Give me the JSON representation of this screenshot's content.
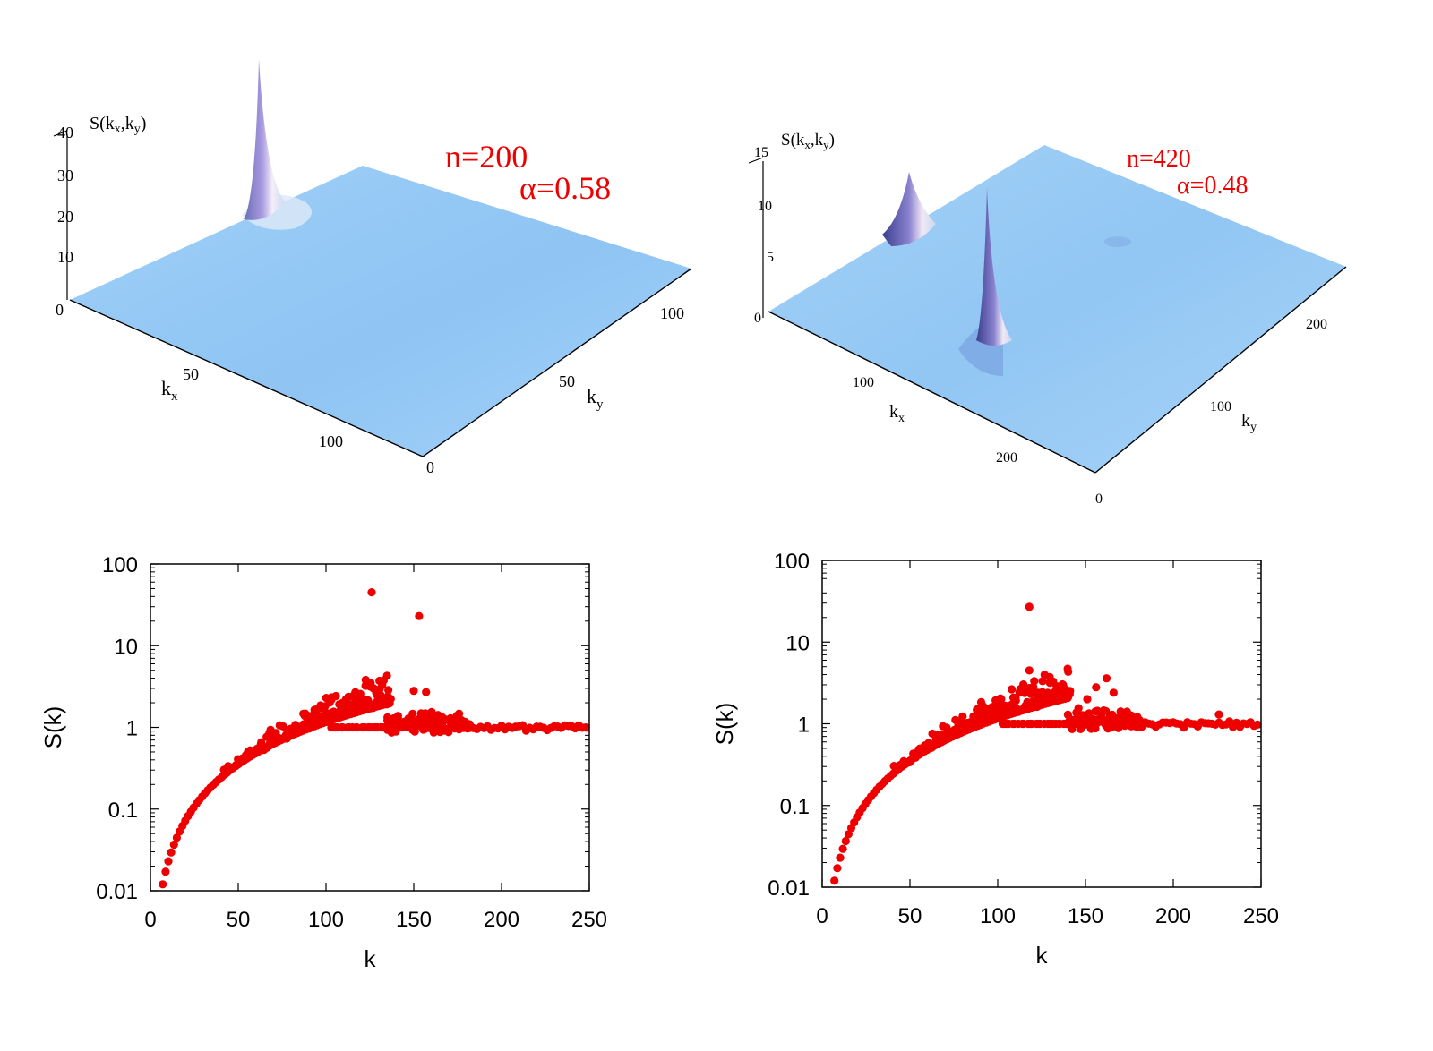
{
  "chart_data": [
    {
      "type": "surface",
      "panel": "top-left",
      "title": "",
      "zlabel_main": "S(k",
      "zlabel_sub_x": "x",
      "zlabel_mid": ",k",
      "zlabel_sub_y": "y",
      "zlabel_end": ")",
      "xlabel_main": "k",
      "xlabel_sub": "x",
      "ylabel_main": "k",
      "ylabel_sub": "y",
      "z_ticks": [
        "40",
        "30",
        "20",
        "10",
        "0"
      ],
      "x_ticks": [
        "50",
        "100"
      ],
      "y_ticks": [
        "0",
        "50",
        "100"
      ],
      "annotation_n": "n=200",
      "annotation_alpha": "α=0.58",
      "peaks": [
        {
          "kx": 5,
          "ky": 60,
          "height": 40
        }
      ]
    },
    {
      "type": "surface",
      "panel": "top-right",
      "title": "",
      "zlabel_main": "S(k",
      "zlabel_sub_x": "x",
      "zlabel_mid": ",k",
      "zlabel_sub_y": "y",
      "zlabel_end": ")",
      "xlabel_main": "k",
      "xlabel_sub": "x",
      "ylabel_main": "k",
      "ylabel_sub": "y",
      "z_ticks": [
        "15",
        "10",
        "5",
        "0"
      ],
      "x_ticks": [
        "100",
        "200"
      ],
      "y_ticks": [
        "0",
        "100",
        "200"
      ],
      "annotation_n": "n=420",
      "annotation_alpha": "α=0.48",
      "peaks": [
        {
          "kx": 10,
          "ky": 150,
          "height": 12
        },
        {
          "kx": 140,
          "ky": 130,
          "height": 15
        }
      ]
    },
    {
      "type": "scatter",
      "panel": "bottom-left",
      "xlabel": "k",
      "ylabel": "S(k)",
      "xlim": [
        0,
        250
      ],
      "ylim": [
        0.01,
        100
      ],
      "yscale": "log",
      "x_ticks": [
        "0",
        "50",
        "100",
        "150",
        "200",
        "250"
      ],
      "y_ticks": [
        "100",
        "10",
        "1",
        "0.1",
        "0.01"
      ],
      "color": "#ee0000",
      "peak_points": [
        [
          126,
          45
        ],
        [
          153,
          23
        ],
        [
          127,
          3.0
        ],
        [
          150,
          2.8
        ],
        [
          157,
          2.7
        ],
        [
          117,
          2.1
        ]
      ],
      "transition_k": 135,
      "tail_end_k": 246,
      "tail_end_value": 1.02
    },
    {
      "type": "scatter",
      "panel": "bottom-right",
      "xlabel": "k",
      "ylabel": "S(k)",
      "xlim": [
        0,
        250
      ],
      "ylim": [
        0.01,
        100
      ],
      "yscale": "log",
      "x_ticks": [
        "0",
        "50",
        "100",
        "150",
        "200",
        "250"
      ],
      "y_ticks": [
        "100",
        "10",
        "1",
        "0.1",
        "0.01"
      ],
      "color": "#ee0000",
      "peak_points": [
        [
          118,
          27
        ],
        [
          118,
          4.5
        ],
        [
          162,
          3.6
        ],
        [
          156,
          2.8
        ],
        [
          166,
          2.4
        ],
        [
          123,
          2.4
        ],
        [
          151,
          2.0
        ],
        [
          226,
          1.3
        ]
      ],
      "transition_k": 140,
      "tail_end_k": 248,
      "tail_end_value": 1.05
    }
  ]
}
